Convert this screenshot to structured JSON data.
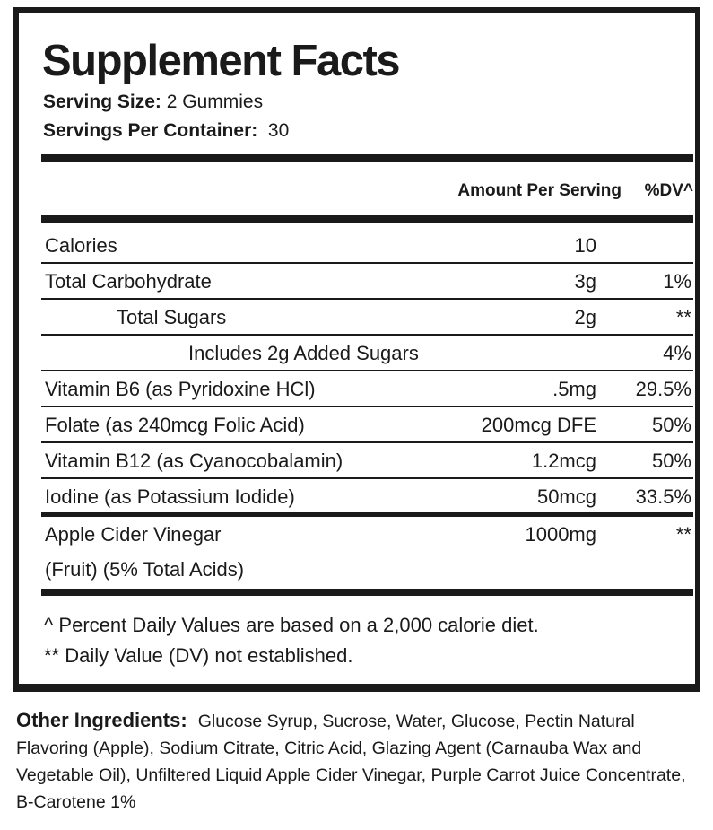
{
  "title": "Supplement Facts",
  "serving_size_label": "Serving Size:",
  "serving_size": "2 Gummies",
  "servings_per_container_label": "Servings Per Container:",
  "servings_per_container": "30",
  "header": {
    "amount": "Amount Per Serving",
    "dv": "%DV^"
  },
  "rows": [
    {
      "name": "Calories",
      "amount": "10",
      "dv": ""
    },
    {
      "name": "Total Carbohydrate",
      "amount": "3g",
      "dv": "1%"
    },
    {
      "name": "Total Sugars",
      "amount": "2g",
      "dv": "**"
    },
    {
      "name": "Includes 2g Added Sugars",
      "amount": "",
      "dv": "4%"
    },
    {
      "name": "Vitamin B6 (as Pyridoxine HCl)",
      "amount": ".5mg",
      "dv": "29.5%"
    },
    {
      "name": "Folate (as 240mcg Folic Acid)",
      "amount": "200mcg DFE",
      "dv": "50%"
    },
    {
      "name": "Vitamin B12 (as Cyanocobalamin)",
      "amount": "1.2mcg",
      "dv": "50%"
    },
    {
      "name": "Iodine (as Potassium Iodide)",
      "amount": "50mcg",
      "dv": "33.5%"
    },
    {
      "name": "Apple Cider Vinegar",
      "name_line2": "(Fruit) (5% Total Acids)",
      "amount": "1000mg",
      "dv": "**"
    }
  ],
  "footnotes": [
    "^ Percent Daily Values are based on a 2,000 calorie diet.",
    "** Daily Value (DV) not established."
  ],
  "other_ingredients_label": "Other Ingredients:",
  "other_ingredients": "Glucose Syrup, Sucrose, Water, Glucose, Pectin Natural Flavoring (Apple), Sodium Citrate, Citric Acid, Glazing Agent (Carnauba Wax and Vegetable Oil), Unfiltered Liquid Apple Cider Vinegar, Purple Carrot Juice Concentrate, B-Carotene 1%"
}
